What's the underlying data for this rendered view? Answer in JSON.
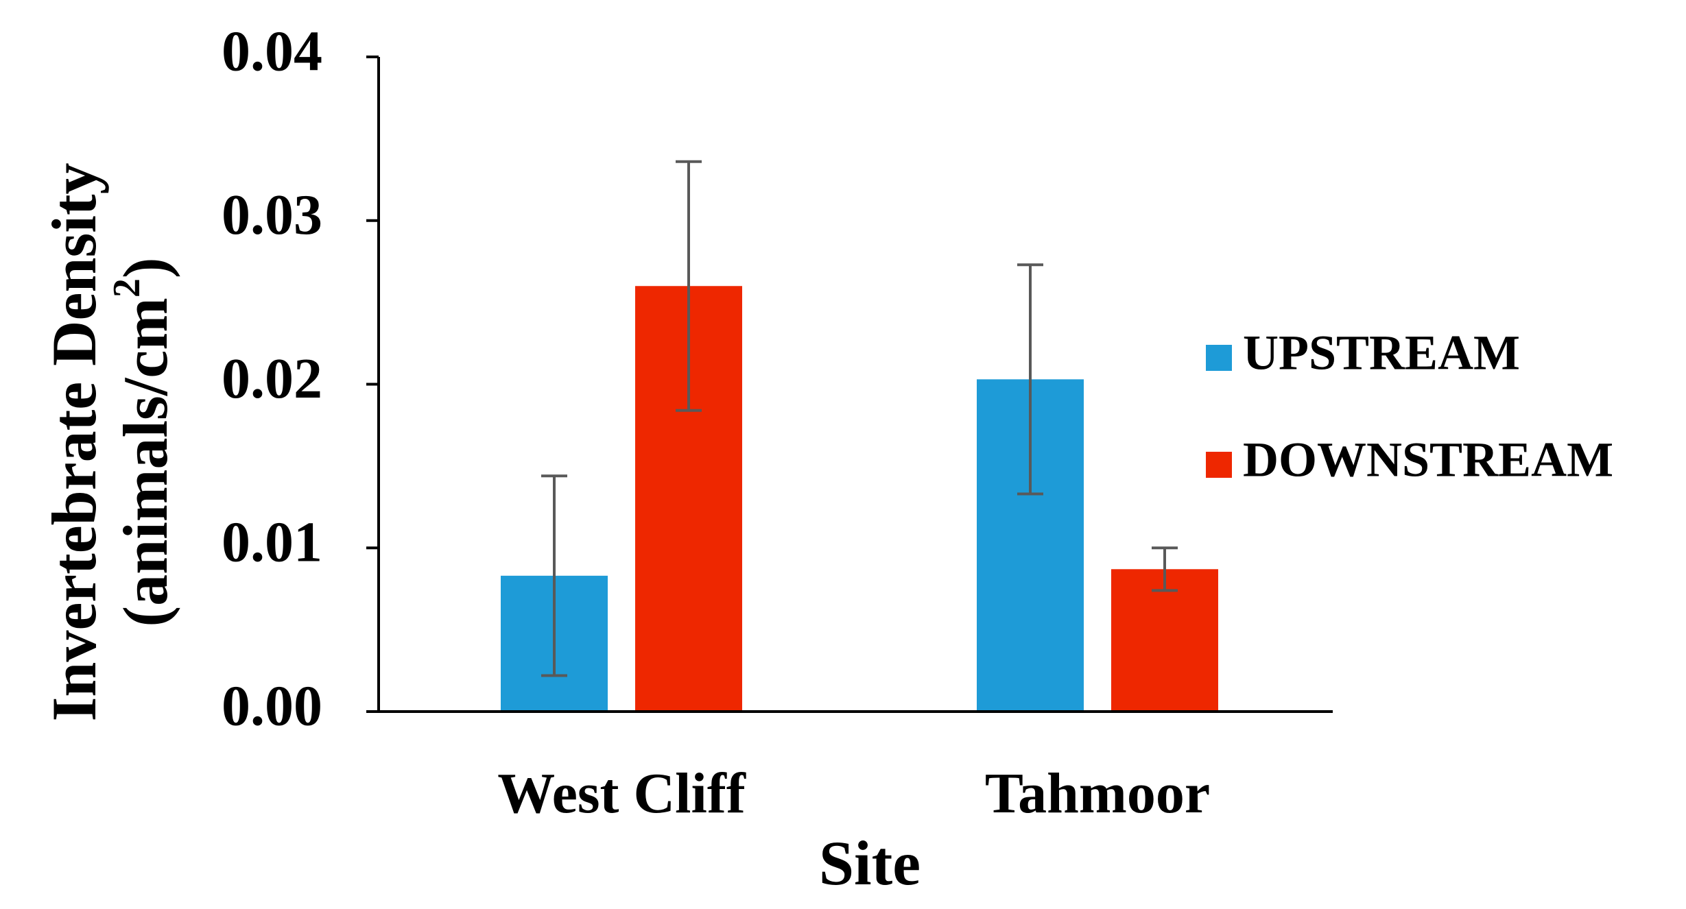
{
  "chart_data": {
    "type": "bar",
    "categories": [
      "West Cliff",
      "Tahmoor"
    ],
    "series": [
      {
        "name": "UPSTREAM",
        "color": "#1e9bd7",
        "values": [
          0.0083,
          0.0203
        ],
        "error": [
          0.0061,
          0.007
        ]
      },
      {
        "name": "DOWNSTREAM",
        "color": "#ee2700",
        "values": [
          0.026,
          0.0087
        ],
        "error": [
          0.0076,
          0.0013
        ]
      }
    ],
    "xlabel": "Site",
    "ylabel": "Invertebrate Density",
    "ylabel_line2_prefix": "(animals/cm",
    "ylabel_line2_sup": "2",
    "ylabel_line2_suffix": ")",
    "ylim": [
      0,
      0.04
    ],
    "yticks": [
      "0.00",
      "0.01",
      "0.02",
      "0.03",
      "0.04"
    ],
    "yticks_values": [
      0,
      0.01,
      0.02,
      0.03,
      0.04
    ],
    "grid": false,
    "legend_position": "right",
    "error_bar_color": "#595959"
  }
}
